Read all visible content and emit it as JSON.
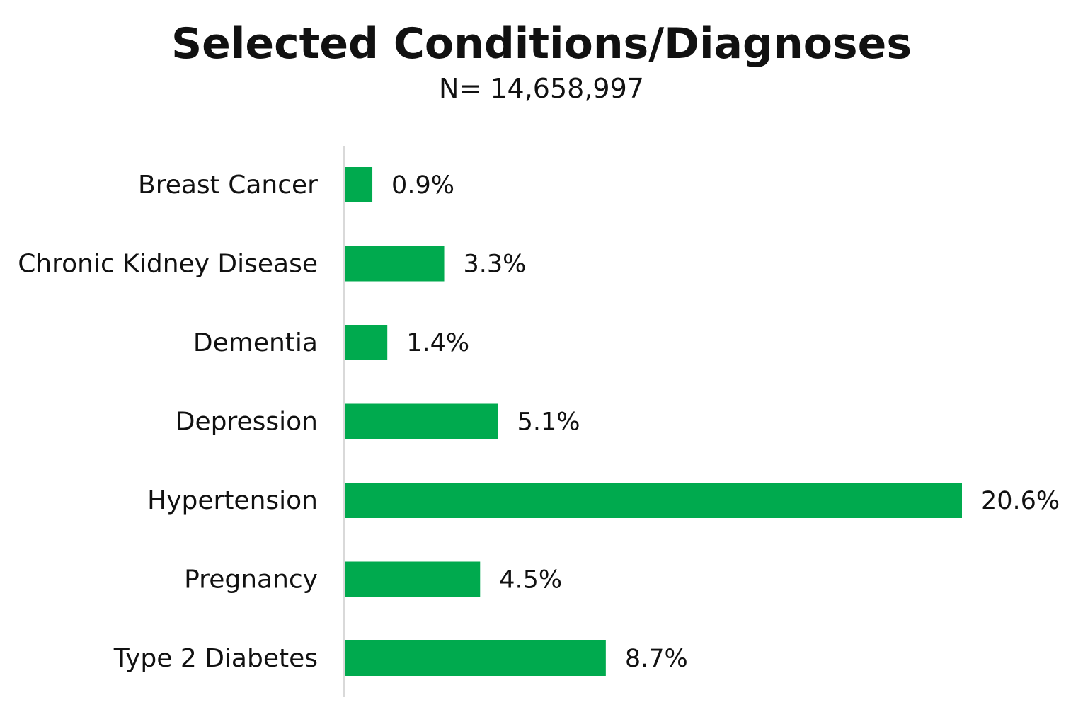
{
  "chart_data": {
    "type": "bar",
    "orientation": "horizontal",
    "title": "Selected Conditions/Diagnoses",
    "subtitle": "N= 14,658,997",
    "categories": [
      "Breast Cancer",
      "Chronic Kidney Disease",
      "Dementia",
      "Depression",
      "Hypertension",
      "Pregnancy",
      "Type 2 Diabetes"
    ],
    "values": [
      0.9,
      3.3,
      1.4,
      5.1,
      20.6,
      4.5,
      8.7
    ],
    "value_labels": [
      "0.9%",
      "3.3%",
      "1.4%",
      "5.1%",
      "20.6%",
      "4.5%",
      "8.7%"
    ],
    "unit": "%",
    "xlabel": "",
    "ylabel": "",
    "xlim": [
      0,
      20.6
    ],
    "grid": false,
    "legend": "none",
    "bar_color": "#00AA4E",
    "axis_color": "#D9D9D9"
  }
}
